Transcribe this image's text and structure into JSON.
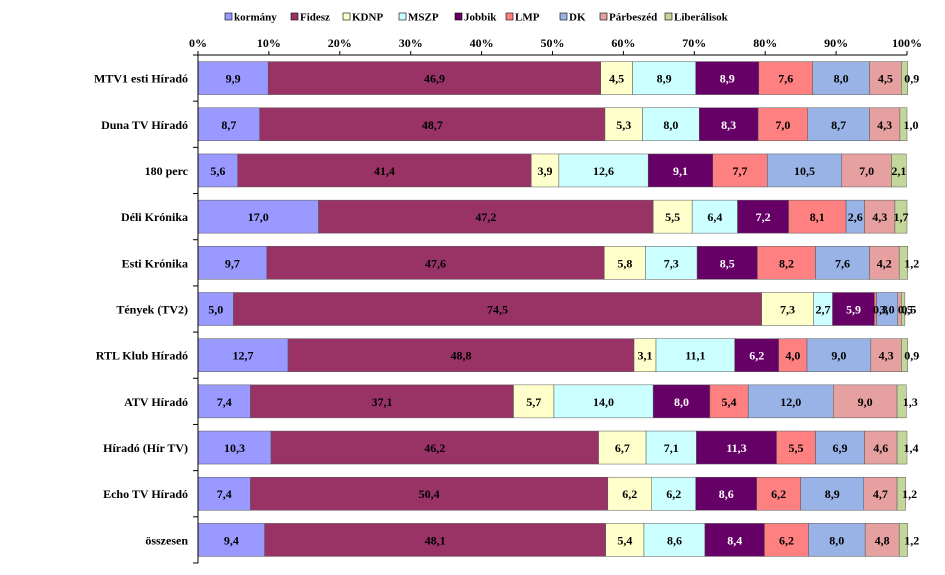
{
  "chart_data": {
    "type": "bar",
    "orientation": "horizontal",
    "stacked": "percent",
    "legend_position": "top",
    "grid": false,
    "xlim": [
      0,
      100
    ],
    "x_ticks": [
      "0%",
      "10%",
      "20%",
      "30%",
      "40%",
      "50%",
      "60%",
      "70%",
      "80%",
      "90%",
      "100%"
    ],
    "categories": [
      "MTV1 esti Híradó",
      "Duna TV Híradó",
      "180 perc",
      "Déli Krónika",
      "Esti Krónika",
      "Tények (TV2)",
      "RTL Klub Híradó",
      "ATV Híradó",
      "Híradó (Hír TV)",
      "Echo TV Híradó",
      "összesen"
    ],
    "series": [
      {
        "name": "kormány",
        "color": "#9999ff",
        "values": [
          9.9,
          8.7,
          5.6,
          17.0,
          9.7,
          5.0,
          12.7,
          7.4,
          10.3,
          7.4,
          9.4
        ],
        "labels": [
          "9,9",
          "8,7",
          "5,6",
          "17,0",
          "9,7",
          "5,0",
          "12,7",
          "7,4",
          "10,3",
          "7,4",
          "9,4"
        ]
      },
      {
        "name": "Fidesz",
        "color": "#993366",
        "values": [
          46.9,
          48.7,
          41.4,
          47.2,
          47.6,
          74.5,
          48.8,
          37.1,
          46.2,
          50.4,
          48.1
        ],
        "labels": [
          "46,9",
          "48,7",
          "41,4",
          "47,2",
          "47,6",
          "74,5",
          "48,8",
          "37,1",
          "46,2",
          "50,4",
          "48,1"
        ]
      },
      {
        "name": "KDNP",
        "color": "#ffffcc",
        "values": [
          4.5,
          5.3,
          3.9,
          5.5,
          5.8,
          7.3,
          3.1,
          5.7,
          6.7,
          6.2,
          5.4
        ],
        "labels": [
          "4,5",
          "5,3",
          "3,9",
          "5,5",
          "5,8",
          "7,3",
          "3,1",
          "5,7",
          "6,7",
          "6,2",
          "5,4"
        ]
      },
      {
        "name": "MSZP",
        "color": "#ccffff",
        "values": [
          8.9,
          8.0,
          12.6,
          6.4,
          7.3,
          2.7,
          11.1,
          14.0,
          7.1,
          6.2,
          8.6
        ],
        "labels": [
          "8,9",
          "8,0",
          "12,6",
          "6,4",
          "7,3",
          "2,7",
          "11,1",
          "14,0",
          "7,1",
          "6,2",
          "8,6"
        ]
      },
      {
        "name": "Jobbik",
        "color": "#660066",
        "values": [
          8.9,
          8.3,
          9.1,
          7.2,
          8.5,
          5.9,
          6.2,
          8.0,
          11.3,
          8.6,
          8.4
        ],
        "labels": [
          "8,9",
          "8,3",
          "9,1",
          "7,2",
          "8,5",
          "5,9",
          "6,2",
          "8,0",
          "11,3",
          "8,6",
          "8,4"
        ]
      },
      {
        "name": "LMP",
        "color": "#ff8080",
        "values": [
          7.6,
          7.0,
          7.7,
          8.1,
          8.2,
          0.3,
          4.0,
          5.4,
          5.5,
          6.2,
          6.2
        ],
        "labels": [
          "7,6",
          "7,0",
          "7,7",
          "8,1",
          "8,2",
          "0,3",
          "4,0",
          "5,4",
          "5,5",
          "6,2",
          "6,2"
        ]
      },
      {
        "name": "DK",
        "color": "#99b3e6",
        "values": [
          8.0,
          8.7,
          10.5,
          2.6,
          7.6,
          3.0,
          9.0,
          12.0,
          6.9,
          8.9,
          8.0
        ],
        "labels": [
          "8,0",
          "8,7",
          "10,5",
          "2,6",
          "7,6",
          "3,0",
          "9,0",
          "12,0",
          "6,9",
          "8,9",
          "8,0"
        ]
      },
      {
        "name": "Párbeszéd",
        "color": "#e6a0a0",
        "values": [
          4.5,
          4.3,
          7.0,
          4.3,
          4.2,
          0.5,
          4.3,
          9.0,
          4.6,
          4.7,
          4.8
        ],
        "labels": [
          "4,5",
          "4,3",
          "7,0",
          "4,3",
          "4,2",
          "0,5",
          "4,3",
          "9,0",
          "4,6",
          "4,7",
          "4,8"
        ]
      },
      {
        "name": "Liberálisok",
        "color": "#c4d79b",
        "values": [
          0.9,
          1.0,
          2.1,
          1.7,
          1.2,
          0.5,
          0.9,
          1.3,
          1.4,
          1.2,
          1.2
        ],
        "labels": [
          "0,9",
          "1,0",
          "2,1",
          "1,7",
          "1,2",
          "0,5",
          "0,9",
          "1,3",
          "1,4",
          "1,2",
          "1,2"
        ]
      }
    ]
  }
}
